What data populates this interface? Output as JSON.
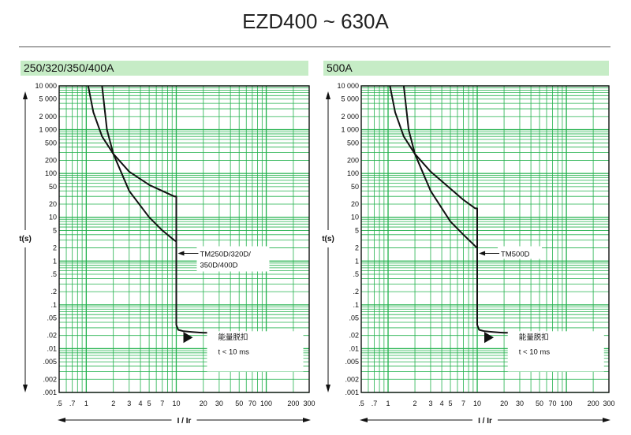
{
  "page": {
    "title": "EZD400 ~ 630A"
  },
  "chart_data": [
    {
      "type": "line",
      "panel_title": "250/320/350/400A",
      "xlabel": "I / Ir",
      "ylabel": "t(s)",
      "x_scale": "log",
      "y_scale": "log",
      "xlim": [
        0.5,
        300
      ],
      "ylim": [
        0.001,
        10000
      ],
      "grid": true,
      "x_ticks": [
        ".5",
        ".7",
        "1",
        "2",
        "3",
        "4",
        "5",
        "7",
        "10",
        "20",
        "30",
        "50",
        "70",
        "100",
        "200",
        "300"
      ],
      "x_tick_values": [
        0.5,
        0.7,
        1,
        2,
        3,
        4,
        5,
        7,
        10,
        20,
        30,
        50,
        70,
        100,
        200,
        300
      ],
      "y_ticks": [
        "10 000",
        "5 000",
        "2 000",
        "1 000",
        "500",
        "200",
        "100",
        "50",
        "20",
        "10",
        "5",
        "2",
        "1",
        ".5",
        ".2",
        ".1",
        ".05",
        ".02",
        ".01",
        ".005",
        ".002",
        ".001"
      ],
      "y_tick_values": [
        10000,
        5000,
        2000,
        1000,
        500,
        200,
        100,
        50,
        20,
        10,
        5,
        2,
        1,
        0.5,
        0.2,
        0.1,
        0.05,
        0.02,
        0.01,
        0.005,
        0.002,
        0.001
      ],
      "series": [
        {
          "x": [
            1.05,
            1.2,
            1.5,
            2,
            3,
            5,
            7,
            9.5,
            10,
            10,
            10.5,
            12,
            15,
            20,
            25
          ],
          "y": [
            10000,
            2500,
            700,
            280,
            110,
            55,
            40,
            30,
            30,
            0.035,
            0.027,
            0.025,
            0.024,
            0.023,
            0.023
          ]
        },
        {
          "x": [
            1.5,
            1.7,
            2,
            3,
            5,
            7,
            9.5,
            10
          ],
          "y": [
            10000,
            1000,
            280,
            40,
            10,
            5,
            3,
            2.8
          ]
        }
      ],
      "annotations": [
        {
          "text": "TM250D/320D/",
          "x": 10,
          "y": 1.5
        },
        {
          "text": "350D/400D"
        },
        {
          "text": "能量脱扣"
        },
        {
          "text": "t < 10 ms"
        }
      ]
    },
    {
      "type": "line",
      "panel_title": "500A",
      "xlabel": "I / Ir",
      "ylabel": "t(s)",
      "x_scale": "log",
      "y_scale": "log",
      "xlim": [
        0.5,
        300
      ],
      "ylim": [
        0.001,
        10000
      ],
      "grid": true,
      "x_ticks": [
        ".5",
        ".7",
        "1",
        "2",
        "3",
        "4",
        "5",
        "7",
        "10",
        "20",
        "30",
        "50",
        "70",
        "100",
        "200",
        "300"
      ],
      "x_tick_values": [
        0.5,
        0.7,
        1,
        2,
        3,
        4,
        5,
        7,
        10,
        20,
        30,
        50,
        70,
        100,
        200,
        300
      ],
      "y_ticks": [
        "10 000",
        "5 000",
        "2 000",
        "1 000",
        "500",
        "200",
        "100",
        "50",
        "20",
        "10",
        "5",
        "2",
        "1",
        ".5",
        ".2",
        ".1",
        ".05",
        ".02",
        ".01",
        ".005",
        ".002",
        ".001"
      ],
      "y_tick_values": [
        10000,
        5000,
        2000,
        1000,
        500,
        200,
        100,
        50,
        20,
        10,
        5,
        2,
        1,
        0.5,
        0.2,
        0.1,
        0.05,
        0.02,
        0.01,
        0.005,
        0.002,
        0.001
      ],
      "series": [
        {
          "x": [
            1.05,
            1.2,
            1.5,
            2,
            3,
            5,
            7,
            9.5,
            10,
            10,
            10.5,
            12,
            15,
            20,
            25
          ],
          "y": [
            10000,
            2500,
            700,
            280,
            110,
            45,
            25,
            16,
            16,
            0.035,
            0.027,
            0.025,
            0.024,
            0.023,
            0.023
          ]
        },
        {
          "x": [
            1.5,
            1.7,
            2,
            3,
            5,
            7,
            9.5,
            10
          ],
          "y": [
            10000,
            1000,
            280,
            40,
            8,
            4,
            2.2,
            2
          ]
        }
      ],
      "annotations": [
        {
          "text": "TM500D",
          "x": 10,
          "y": 1.5
        },
        {
          "text": "能量脱扣"
        },
        {
          "text": "t < 10 ms"
        }
      ]
    }
  ]
}
